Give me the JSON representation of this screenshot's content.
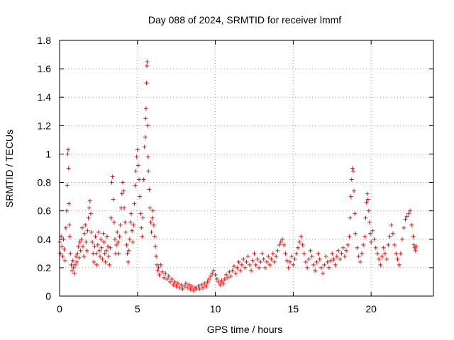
{
  "chart_data": {
    "type": "scatter",
    "title": "Day 088 of 2024, SRMTID for receiver lmmf",
    "xlabel": "GPS time / hours",
    "ylabel": "SRMTID / TECUs",
    "xlim": [
      0,
      24
    ],
    "ylim": [
      0,
      1.8
    ],
    "x_ticks": [
      0,
      5,
      10,
      15,
      20
    ],
    "x_tick_labels": [
      "0",
      "5",
      "10",
      "15",
      "20"
    ],
    "y_ticks": [
      0,
      0.2,
      0.4,
      0.6,
      0.8,
      1,
      1.2,
      1.4,
      1.6,
      1.8
    ],
    "y_tick_labels": [
      "0",
      "0.2",
      "0.4",
      "0.6",
      "0.8",
      "1",
      "1.2",
      "1.4",
      "1.6",
      "1.8"
    ],
    "grid": true,
    "marker": "+",
    "color": "#ff0000",
    "series": [
      {
        "name": "SRMTID",
        "points": [
          [
            0.0,
            0.38
          ],
          [
            0.05,
            0.3
          ],
          [
            0.1,
            0.42
          ],
          [
            0.15,
            0.35
          ],
          [
            0.2,
            0.28
          ],
          [
            0.25,
            0.4
          ],
          [
            0.3,
            0.33
          ],
          [
            0.35,
            0.25
          ],
          [
            0.4,
            0.48
          ],
          [
            0.45,
            0.6
          ],
          [
            0.5,
            0.78
          ],
          [
            0.52,
            1.0
          ],
          [
            0.55,
            1.03
          ],
          [
            0.58,
            0.9
          ],
          [
            0.6,
            0.65
          ],
          [
            0.62,
            0.5
          ],
          [
            0.65,
            0.42
          ],
          [
            0.7,
            0.3
          ],
          [
            0.75,
            0.22
          ],
          [
            0.8,
            0.18
          ],
          [
            0.85,
            0.25
          ],
          [
            0.9,
            0.2
          ],
          [
            0.95,
            0.16
          ],
          [
            1.0,
            0.22
          ],
          [
            1.05,
            0.28
          ],
          [
            1.1,
            0.24
          ],
          [
            1.15,
            0.3
          ],
          [
            1.2,
            0.35
          ],
          [
            1.25,
            0.27
          ],
          [
            1.3,
            0.38
          ],
          [
            1.35,
            0.32
          ],
          [
            1.4,
            0.4
          ],
          [
            1.45,
            0.48
          ],
          [
            1.5,
            0.35
          ],
          [
            1.55,
            0.28
          ],
          [
            1.6,
            0.44
          ],
          [
            1.65,
            0.5
          ],
          [
            1.7,
            0.38
          ],
          [
            1.75,
            0.32
          ],
          [
            1.8,
            0.46
          ],
          [
            1.85,
            0.55
          ],
          [
            1.9,
            0.62
          ],
          [
            1.95,
            0.67
          ],
          [
            2.0,
            0.58
          ],
          [
            2.05,
            0.45
          ],
          [
            2.1,
            0.38
          ],
          [
            2.15,
            0.3
          ],
          [
            2.2,
            0.24
          ],
          [
            2.25,
            0.35
          ],
          [
            2.3,
            0.42
          ],
          [
            2.35,
            0.3
          ],
          [
            2.4,
            0.22
          ],
          [
            2.45,
            0.36
          ],
          [
            2.5,
            0.45
          ],
          [
            2.55,
            0.32
          ],
          [
            2.6,
            0.28
          ],
          [
            2.65,
            0.4
          ],
          [
            2.7,
            0.34
          ],
          [
            2.75,
            0.26
          ],
          [
            2.8,
            0.44
          ],
          [
            2.85,
            0.38
          ],
          [
            2.9,
            0.3
          ],
          [
            2.95,
            0.24
          ],
          [
            3.0,
            0.32
          ],
          [
            3.05,
            0.42
          ],
          [
            3.1,
            0.35
          ],
          [
            3.15,
            0.28
          ],
          [
            3.2,
            0.22
          ],
          [
            3.25,
            0.34
          ],
          [
            3.3,
            0.55
          ],
          [
            3.35,
            0.8
          ],
          [
            3.4,
            0.84
          ],
          [
            3.45,
            0.68
          ],
          [
            3.5,
            0.52
          ],
          [
            3.55,
            0.4
          ],
          [
            3.6,
            0.3
          ],
          [
            3.65,
            0.36
          ],
          [
            3.7,
            0.45
          ],
          [
            3.75,
            0.38
          ],
          [
            3.8,
            0.3
          ],
          [
            3.85,
            0.42
          ],
          [
            3.9,
            0.5
          ],
          [
            3.95,
            0.62
          ],
          [
            4.0,
            0.72
          ],
          [
            4.05,
            0.8
          ],
          [
            4.1,
            0.74
          ],
          [
            4.15,
            0.62
          ],
          [
            4.2,
            0.52
          ],
          [
            4.25,
            0.45
          ],
          [
            4.3,
            0.36
          ],
          [
            4.35,
            0.3
          ],
          [
            4.4,
            0.24
          ],
          [
            4.45,
            0.32
          ],
          [
            4.5,
            0.4
          ],
          [
            4.55,
            0.52
          ],
          [
            4.6,
            0.58
          ],
          [
            4.65,
            0.46
          ],
          [
            4.7,
            0.38
          ],
          [
            4.75,
            0.5
          ],
          [
            4.8,
            0.65
          ],
          [
            4.85,
            0.78
          ],
          [
            4.9,
            0.88
          ],
          [
            4.95,
            0.98
          ],
          [
            5.0,
            1.03
          ],
          [
            5.05,
            0.92
          ],
          [
            5.1,
            0.82
          ],
          [
            5.15,
            0.7
          ],
          [
            5.2,
            0.58
          ],
          [
            5.25,
            0.48
          ],
          [
            5.3,
            0.42
          ],
          [
            5.35,
            0.55
          ],
          [
            5.4,
            0.82
          ],
          [
            5.45,
            1.05
          ],
          [
            5.5,
            1.12
          ],
          [
            5.52,
            1.25
          ],
          [
            5.55,
            1.32
          ],
          [
            5.58,
            1.5
          ],
          [
            5.6,
            1.62
          ],
          [
            5.62,
            1.65
          ],
          [
            5.65,
            1.2
          ],
          [
            5.68,
            0.98
          ],
          [
            5.7,
            0.88
          ],
          [
            5.75,
            0.75
          ],
          [
            5.8,
            0.62
          ],
          [
            5.85,
            0.52
          ],
          [
            5.9,
            0.45
          ],
          [
            5.95,
            0.55
          ],
          [
            6.0,
            0.6
          ],
          [
            6.05,
            0.5
          ],
          [
            6.1,
            0.42
          ],
          [
            6.15,
            0.35
          ],
          [
            6.2,
            0.28
          ],
          [
            6.25,
            0.22
          ],
          [
            6.3,
            0.18
          ],
          [
            6.35,
            0.2
          ],
          [
            6.4,
            0.15
          ],
          [
            6.5,
            0.22
          ],
          [
            6.6,
            0.17
          ],
          [
            6.7,
            0.13
          ],
          [
            6.8,
            0.16
          ],
          [
            6.9,
            0.12
          ],
          [
            7.0,
            0.14
          ],
          [
            7.1,
            0.1
          ],
          [
            7.2,
            0.12
          ],
          [
            7.3,
            0.08
          ],
          [
            7.4,
            0.1
          ],
          [
            7.5,
            0.07
          ],
          [
            7.6,
            0.09
          ],
          [
            7.7,
            0.06
          ],
          [
            7.8,
            0.08
          ],
          [
            7.9,
            0.05
          ],
          [
            8.0,
            0.07
          ],
          [
            8.1,
            0.09
          ],
          [
            8.2,
            0.06
          ],
          [
            8.3,
            0.08
          ],
          [
            8.4,
            0.05
          ],
          [
            8.5,
            0.07
          ],
          [
            8.6,
            0.04
          ],
          [
            8.7,
            0.06
          ],
          [
            8.8,
            0.05
          ],
          [
            8.9,
            0.07
          ],
          [
            9.0,
            0.05
          ],
          [
            9.1,
            0.08
          ],
          [
            9.2,
            0.06
          ],
          [
            9.3,
            0.09
          ],
          [
            9.4,
            0.07
          ],
          [
            9.5,
            0.1
          ],
          [
            9.6,
            0.12
          ],
          [
            9.7,
            0.14
          ],
          [
            9.8,
            0.16
          ],
          [
            9.9,
            0.18
          ],
          [
            10.0,
            0.15
          ],
          [
            10.1,
            0.12
          ],
          [
            10.2,
            0.1
          ],
          [
            10.3,
            0.08
          ],
          [
            10.4,
            0.11
          ],
          [
            10.5,
            0.09
          ],
          [
            10.6,
            0.12
          ],
          [
            10.7,
            0.15
          ],
          [
            10.8,
            0.13
          ],
          [
            10.9,
            0.17
          ],
          [
            11.0,
            0.14
          ],
          [
            11.1,
            0.18
          ],
          [
            11.2,
            0.21
          ],
          [
            11.3,
            0.16
          ],
          [
            11.4,
            0.2
          ],
          [
            11.5,
            0.24
          ],
          [
            11.6,
            0.18
          ],
          [
            11.7,
            0.22
          ],
          [
            11.8,
            0.26
          ],
          [
            11.9,
            0.2
          ],
          [
            12.0,
            0.24
          ],
          [
            12.1,
            0.28
          ],
          [
            12.2,
            0.22
          ],
          [
            12.3,
            0.18
          ],
          [
            12.4,
            0.25
          ],
          [
            12.5,
            0.3
          ],
          [
            12.6,
            0.22
          ],
          [
            12.7,
            0.26
          ],
          [
            12.8,
            0.2
          ],
          [
            12.9,
            0.24
          ],
          [
            13.0,
            0.3
          ],
          [
            13.1,
            0.26
          ],
          [
            13.2,
            0.2
          ],
          [
            13.3,
            0.24
          ],
          [
            13.4,
            0.28
          ],
          [
            13.5,
            0.22
          ],
          [
            13.6,
            0.26
          ],
          [
            13.7,
            0.3
          ],
          [
            13.8,
            0.24
          ],
          [
            13.9,
            0.28
          ],
          [
            14.0,
            0.32
          ],
          [
            14.1,
            0.36
          ],
          [
            14.2,
            0.38
          ],
          [
            14.3,
            0.4
          ],
          [
            14.4,
            0.36
          ],
          [
            14.5,
            0.3
          ],
          [
            14.6,
            0.25
          ],
          [
            14.7,
            0.2
          ],
          [
            14.8,
            0.24
          ],
          [
            14.9,
            0.28
          ],
          [
            15.0,
            0.22
          ],
          [
            15.1,
            0.26
          ],
          [
            15.2,
            0.3
          ],
          [
            15.3,
            0.34
          ],
          [
            15.4,
            0.38
          ],
          [
            15.5,
            0.42
          ],
          [
            15.6,
            0.36
          ],
          [
            15.7,
            0.3
          ],
          [
            15.8,
            0.24
          ],
          [
            15.9,
            0.2
          ],
          [
            16.0,
            0.26
          ],
          [
            16.1,
            0.32
          ],
          [
            16.2,
            0.28
          ],
          [
            16.3,
            0.22
          ],
          [
            16.4,
            0.18
          ],
          [
            16.5,
            0.24
          ],
          [
            16.6,
            0.3
          ],
          [
            16.7,
            0.26
          ],
          [
            16.8,
            0.2
          ],
          [
            16.9,
            0.16
          ],
          [
            17.0,
            0.22
          ],
          [
            17.1,
            0.28
          ],
          [
            17.2,
            0.24
          ],
          [
            17.3,
            0.2
          ],
          [
            17.4,
            0.25
          ],
          [
            17.5,
            0.3
          ],
          [
            17.6,
            0.26
          ],
          [
            17.7,
            0.22
          ],
          [
            17.8,
            0.28
          ],
          [
            17.9,
            0.32
          ],
          [
            18.0,
            0.26
          ],
          [
            18.1,
            0.3
          ],
          [
            18.2,
            0.34
          ],
          [
            18.3,
            0.28
          ],
          [
            18.4,
            0.32
          ],
          [
            18.5,
            0.36
          ],
          [
            18.6,
            0.42
          ],
          [
            18.65,
            0.55
          ],
          [
            18.7,
            0.7
          ],
          [
            18.75,
            0.82
          ],
          [
            18.8,
            0.9
          ],
          [
            18.85,
            0.88
          ],
          [
            18.9,
            0.74
          ],
          [
            18.95,
            0.58
          ],
          [
            19.0,
            0.44
          ],
          [
            19.1,
            0.34
          ],
          [
            19.2,
            0.28
          ],
          [
            19.3,
            0.24
          ],
          [
            19.4,
            0.3
          ],
          [
            19.5,
            0.36
          ],
          [
            19.6,
            0.42
          ],
          [
            19.65,
            0.55
          ],
          [
            19.7,
            0.66
          ],
          [
            19.75,
            0.72
          ],
          [
            19.8,
            0.68
          ],
          [
            19.85,
            0.6
          ],
          [
            19.9,
            0.52
          ],
          [
            19.95,
            0.44
          ],
          [
            20.0,
            0.38
          ],
          [
            20.1,
            0.46
          ],
          [
            20.2,
            0.4
          ],
          [
            20.3,
            0.34
          ],
          [
            20.4,
            0.3
          ],
          [
            20.5,
            0.26
          ],
          [
            20.6,
            0.22
          ],
          [
            20.7,
            0.28
          ],
          [
            20.8,
            0.34
          ],
          [
            20.9,
            0.3
          ],
          [
            21.0,
            0.26
          ],
          [
            21.1,
            0.36
          ],
          [
            21.2,
            0.42
          ],
          [
            21.3,
            0.5
          ],
          [
            21.4,
            0.44
          ],
          [
            21.5,
            0.36
          ],
          [
            21.6,
            0.3
          ],
          [
            21.7,
            0.26
          ],
          [
            21.8,
            0.22
          ],
          [
            21.9,
            0.3
          ],
          [
            22.0,
            0.4
          ],
          [
            22.1,
            0.48
          ],
          [
            22.2,
            0.54
          ],
          [
            22.3,
            0.56
          ],
          [
            22.4,
            0.58
          ],
          [
            22.5,
            0.6
          ],
          [
            22.6,
            0.5
          ],
          [
            22.7,
            0.42
          ],
          [
            22.75,
            0.36
          ],
          [
            22.8,
            0.34
          ],
          [
            22.85,
            0.32
          ],
          [
            22.9,
            0.35
          ]
        ]
      }
    ]
  }
}
